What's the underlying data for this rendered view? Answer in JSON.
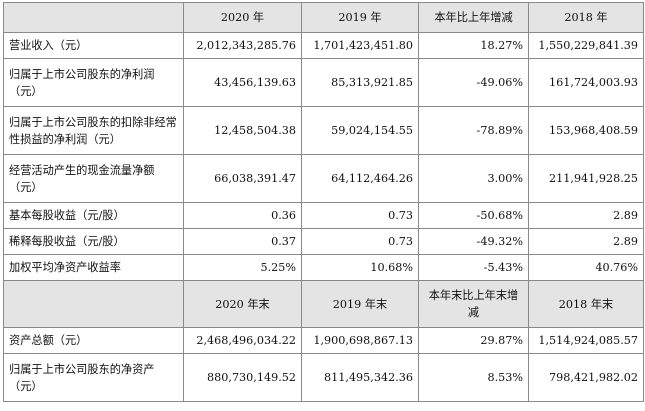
{
  "header1": [
    "",
    "2020 年",
    "2019 年",
    "本年比上年增减",
    "2018 年"
  ],
  "rows1": [
    {
      "label": "营业收入（元）",
      "v2020": "2,012,343,285.76",
      "v2019": "1,701,423,451.80",
      "change": "18.27%",
      "v2018": "1,550,229,841.39"
    },
    {
      "label": "归属于上市公司股东的净利润（元）",
      "v2020": "43,456,139.63",
      "v2019": "85,313,921.85",
      "change": "-49.06%",
      "v2018": "161,724,003.93"
    },
    {
      "label": "归属于上市公司股东的扣除非经常性损益的净利润（元）",
      "v2020": "12,458,504.38",
      "v2019": "59,024,154.55",
      "change": "-78.89%",
      "v2018": "153,968,408.59"
    },
    {
      "label": "经营活动产生的现金流量净额（元）",
      "v2020": "66,038,391.47",
      "v2019": "64,112,464.26",
      "change": "3.00%",
      "v2018": "211,941,928.25"
    },
    {
      "label": "基本每股收益（元/股）",
      "v2020": "0.36",
      "v2019": "0.73",
      "change": "-50.68%",
      "v2018": "2.89"
    },
    {
      "label": "稀释每股收益（元/股）",
      "v2020": "0.37",
      "v2019": "0.73",
      "change": "-49.32%",
      "v2018": "2.89"
    },
    {
      "label": "加权平均净资产收益率",
      "v2020": "5.25%",
      "v2019": "10.68%",
      "change": "-5.43%",
      "v2018": "40.76%"
    }
  ],
  "header2": [
    "",
    "2020 年末",
    "2019 年末",
    "本年末比上年末增减",
    "2018 年末"
  ],
  "rows2": [
    {
      "label": "资产总额（元）",
      "v2020": "2,468,496,034.22",
      "v2019": "1,900,698,867.13",
      "change": "29.87%",
      "v2018": "1,514,924,085.57"
    },
    {
      "label": "归属于上市公司股东的净资产（元）",
      "v2020": "880,730,149.52",
      "v2019": "811,495,342.36",
      "change": "8.53%",
      "v2018": "798,421,982.02"
    }
  ]
}
